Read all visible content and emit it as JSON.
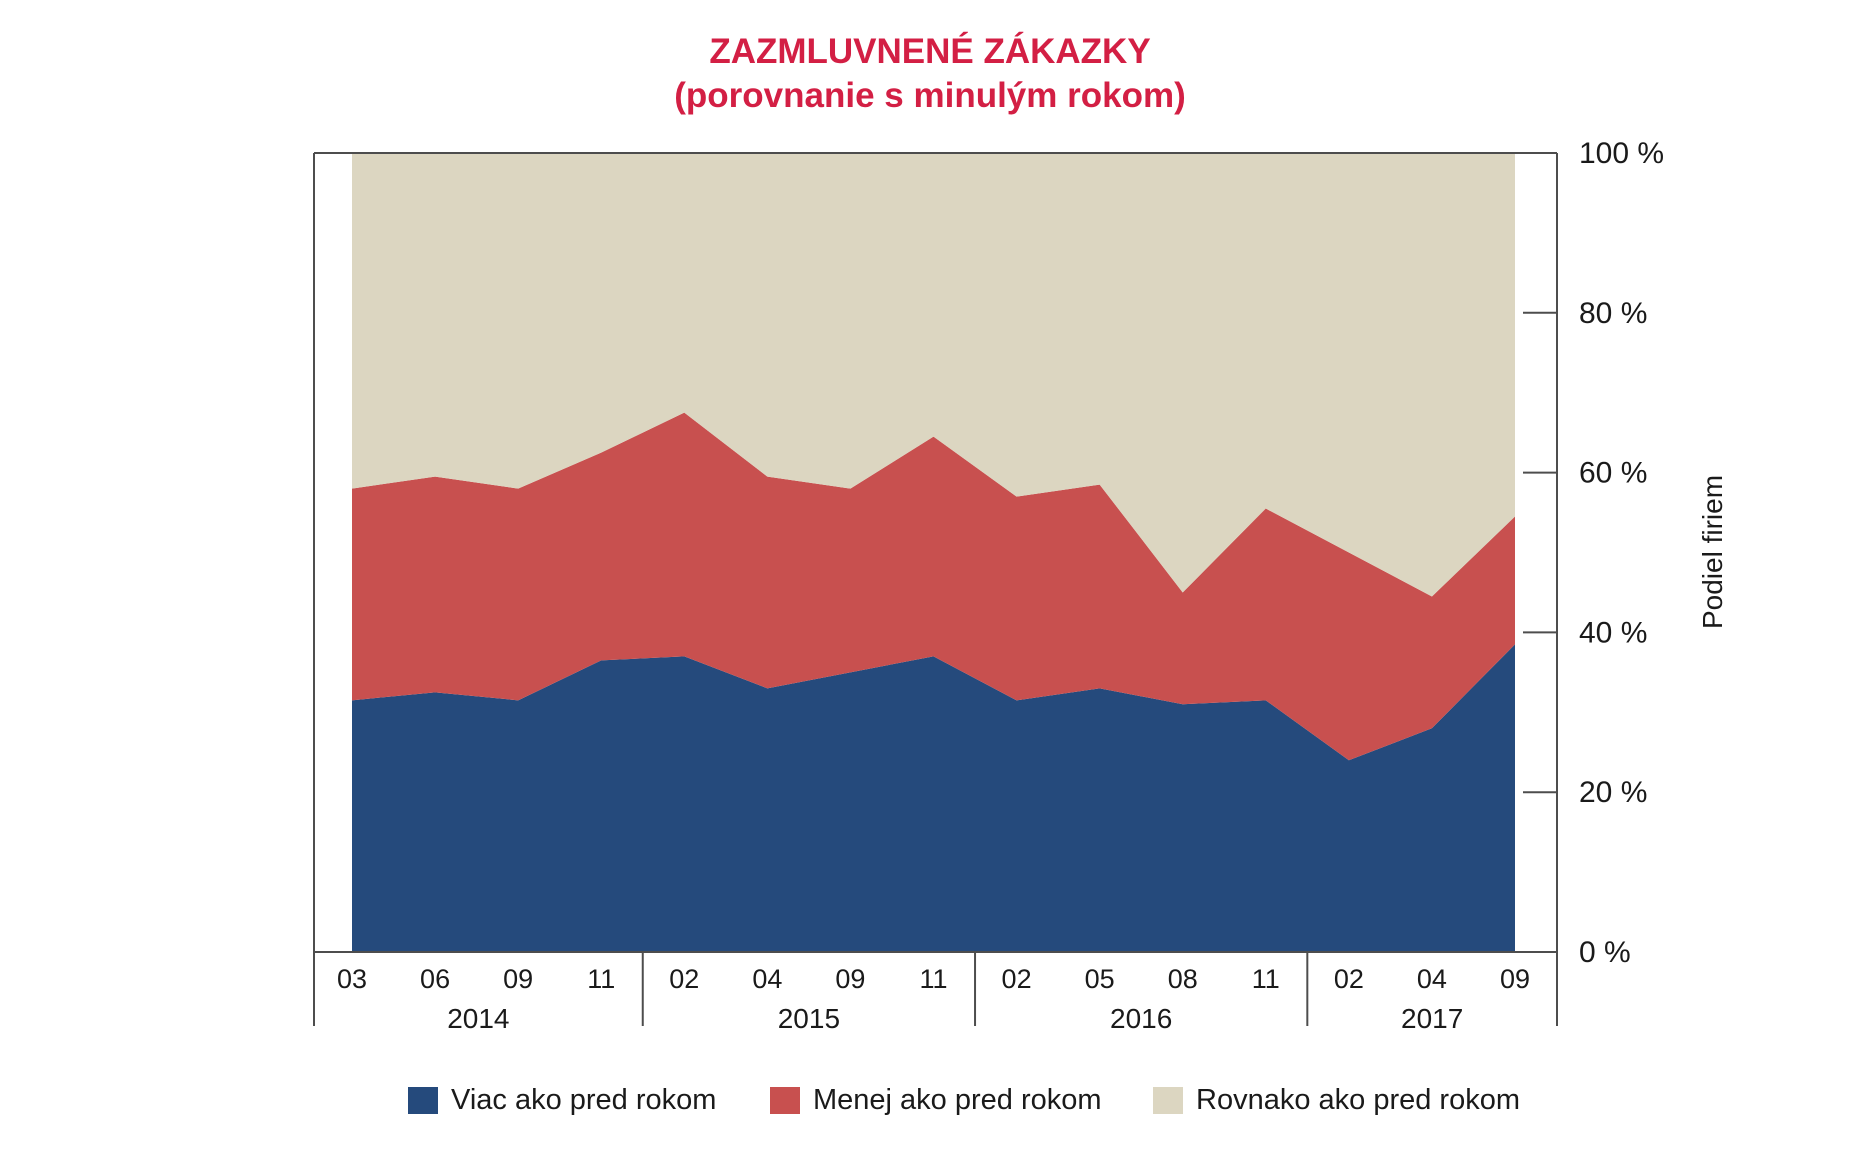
{
  "colors": {
    "title_accent": "#D31F44",
    "axis_line": "#4D4D4D",
    "label_text": "#1A1A1A",
    "background": "#FFFFFF"
  },
  "chart_data": {
    "type": "area",
    "stacked": true,
    "grid": false,
    "legend_position": "bottom",
    "title": "ZAZMLUVNENÉ ZÁKAZKY",
    "subtitle": "(porovnanie s minulým rokom)",
    "ylabel": "Podiel firiem",
    "ylim": [
      0,
      100
    ],
    "y_ticks": [
      {
        "value": 0,
        "label": "0 %"
      },
      {
        "value": 20,
        "label": "20 %"
      },
      {
        "value": 40,
        "label": "40 %"
      },
      {
        "value": 60,
        "label": "60 %"
      },
      {
        "value": 80,
        "label": "80 %"
      },
      {
        "value": 100,
        "label": "100 %"
      }
    ],
    "categories": [
      "03",
      "06",
      "09",
      "11",
      "02",
      "04",
      "09",
      "11",
      "02",
      "05",
      "08",
      "11",
      "02",
      "04",
      "09"
    ],
    "year_groups": [
      {
        "label": "2014",
        "start": 0,
        "end": 3
      },
      {
        "label": "2015",
        "start": 4,
        "end": 7
      },
      {
        "label": "2016",
        "start": 8,
        "end": 11
      },
      {
        "label": "2017",
        "start": 12,
        "end": 14
      }
    ],
    "series": [
      {
        "name": "Viac ako pred rokom",
        "color": "#254A7C",
        "values": [
          31.5,
          32.5,
          31.5,
          36.5,
          37,
          33,
          35,
          37,
          31.5,
          33,
          31,
          31.5,
          24,
          28,
          38.5
        ]
      },
      {
        "name": "Menej ako pred rokom",
        "color": "#C8504F",
        "values": [
          26.5,
          27,
          26.5,
          26,
          30.5,
          26.5,
          23,
          27.5,
          25.5,
          25.5,
          14,
          24,
          26,
          16.5,
          16
        ]
      },
      {
        "name": "Rovnako ako pred rokom",
        "color": "#DCD6C1",
        "values": [
          42,
          40.5,
          42,
          37.5,
          32.5,
          40.5,
          42,
          35.5,
          43,
          41.5,
          55,
          44.5,
          50,
          55.5,
          45.5
        ]
      }
    ]
  }
}
